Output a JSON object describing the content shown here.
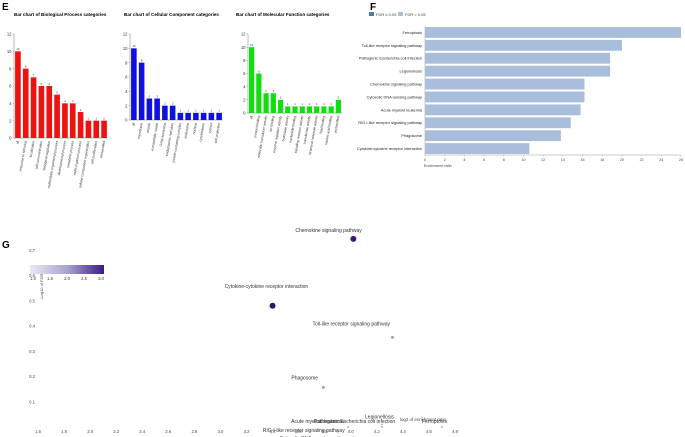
{
  "panels": {
    "E": "E",
    "F": "F",
    "G": "G"
  },
  "chart_data": [
    {
      "id": "bp",
      "type": "bar",
      "title": "Bar chart of Biological Process categories",
      "color": "#ee1111",
      "ylim": [
        0,
        12
      ],
      "yticks": [
        0,
        2,
        4,
        6,
        8,
        10,
        12
      ],
      "categories": [
        "all",
        "response to stimulus",
        "localization",
        "cell communication",
        "biological regulation",
        "multicellular organismal process",
        "developmental process",
        "metabolic process",
        "multi-organism process",
        "cellular component organization",
        "cell proliferation",
        "unclassified"
      ],
      "values": [
        10,
        8,
        7,
        6,
        6,
        5,
        4,
        4,
        3,
        2,
        2,
        2
      ],
      "labels": [
        "10",
        "8",
        "7",
        "6",
        "6",
        "5",
        "4",
        "4",
        "3",
        "2",
        "2",
        "2"
      ]
    },
    {
      "id": "cc",
      "type": "bar",
      "title": "Bar chart of Cellular Component categories",
      "color": "#1010dd",
      "ylim": [
        0,
        12
      ],
      "yticks": [
        0,
        2,
        4,
        6,
        8,
        10,
        12
      ],
      "categories": [
        "all",
        "membrane",
        "vesicle",
        "extracellular space",
        "Golgi apparatus",
        "endoplasmic reticulum",
        "protein-containing complex",
        "endosome",
        "nucleus",
        "cytoskeleton",
        "cytosol",
        "cell projection"
      ],
      "values": [
        10,
        8,
        3,
        3,
        2,
        2,
        1,
        1,
        1,
        1,
        1,
        1
      ],
      "labels": [
        "10",
        "8",
        "3",
        "3",
        "2",
        "2",
        "1",
        "1",
        "1",
        "1",
        "1",
        "1"
      ]
    },
    {
      "id": "mf",
      "type": "bar",
      "title": "Bar chart of Molecular Function categories",
      "color": "#11dd11",
      "ylim": [
        0,
        12
      ],
      "yticks": [
        0,
        2,
        4,
        6,
        8,
        10,
        12
      ],
      "categories": [
        "all",
        "protein binding",
        "molecular transducer activity",
        "ion binding",
        "enzyme regulator activity",
        "hydrolase activity",
        "nucleotide binding",
        "signaling receptor activity",
        "transferase activity",
        "structural molecule activity",
        "lipid binding",
        "nucleic acid binding",
        "unclassified"
      ],
      "values": [
        10,
        6,
        3,
        3,
        2,
        1,
        1,
        1,
        1,
        1,
        1,
        1,
        2
      ],
      "labels": [
        "10",
        "6",
        "3",
        "3",
        "2",
        "1",
        "1",
        "1",
        "1",
        "1",
        "1",
        "1",
        "2"
      ]
    },
    {
      "id": "f",
      "type": "bar",
      "orientation": "horizontal",
      "legend": [
        "FDR ≤ 0.05",
        "FDR > 0.05"
      ],
      "legend_colors": [
        "#4a7ab5",
        "#a9bedb"
      ],
      "color": "#a9bedb",
      "categories": [
        "Ferroptosis",
        "Toll-like receptor signaling pathway",
        "Pathogenic Escherichia coli infection",
        "Legionellosis",
        "Chemokine signaling pathway",
        "Cytosolic DNA-sensing pathway",
        "Acute myeloid leukemia",
        "RIG-I-like receptor signaling pathway",
        "Phagosome",
        "Cytokine-cytokine receptor interaction"
      ],
      "values": [
        26,
        20,
        18.8,
        18.8,
        16.2,
        16.2,
        15.8,
        14.8,
        13.8,
        10.6
      ],
      "xlim": [
        0,
        26
      ],
      "xticks": [
        "0",
        "2",
        "4",
        "6",
        "8",
        "10",
        "12",
        "14",
        "16",
        "18",
        "20",
        "22",
        "24",
        "26"
      ],
      "xlabel": "Enrichment ratio"
    },
    {
      "id": "g",
      "type": "scatter",
      "xlabel": "log2 of enrichment ratio",
      "ylabel": "-Log10 of FDR",
      "xlim": [
        1.6,
        4.8
      ],
      "ylim": [
        0,
        0.8
      ],
      "xticks": [
        "1.6",
        "1.8",
        "2.0",
        "2.2",
        "2.4",
        "2.6",
        "2.8",
        "3.0",
        "3.2",
        "3.4",
        "3.6",
        "3.8",
        "4.0",
        "4.2",
        "4.4",
        "4.6",
        "4.8"
      ],
      "yticks": [
        "0.1",
        "0.2",
        "0.3",
        "0.4",
        "0.5",
        "0.6",
        "0.7"
      ],
      "colorbar": {
        "ticks": [
          "1.0",
          "1.5",
          "2.0",
          "2.5",
          "3.0"
        ],
        "colors": [
          "#eae8f5",
          "#aba3d1",
          "#3c1a84"
        ]
      },
      "points": [
        {
          "label": "Chemokine signaling pathway",
          "x": 4.02,
          "y": 0.745,
          "color": "#3c1a84",
          "size": 3
        },
        {
          "label": "Cytokine-cytokine receptor interaction",
          "x": 3.4,
          "y": 0.48,
          "color": "#2d1a5a",
          "size": 3
        },
        {
          "label": "Toll-like receptor signaling pathway",
          "x": 4.32,
          "y": 0.355,
          "color": "#a59bcf",
          "size": 1.5
        },
        {
          "label": "Phagosome",
          "x": 3.79,
          "y": 0.157,
          "color": "#a59bcf",
          "size": 1.5
        },
        {
          "label": "Legionellosis",
          "x": 4.24,
          "y": 0.01,
          "color": "#b9b0da",
          "size": 1
        },
        {
          "label": "Acute myeloid leukemia",
          "x": 3.98,
          "y": 0.0,
          "color": "#b9b0da",
          "size": 1
        },
        {
          "label": "Pathogenic Escherichia coli infection",
          "x": 4.24,
          "y": 0.0,
          "color": "#b9b0da",
          "size": 1
        },
        {
          "label": "Ferroptosis",
          "x": 4.7,
          "y": 0.0,
          "color": "#b9b0da",
          "size": 1
        },
        {
          "label": "RIG-I-like receptor signaling pathway",
          "x": 3.9,
          "y": -0.02,
          "color": "#b9b0da",
          "size": 1
        },
        {
          "label": "Cytosolic DNA-sensing pathway",
          "x": 4.02,
          "y": -0.04,
          "color": "#b9b0da",
          "size": 1
        }
      ]
    }
  ]
}
